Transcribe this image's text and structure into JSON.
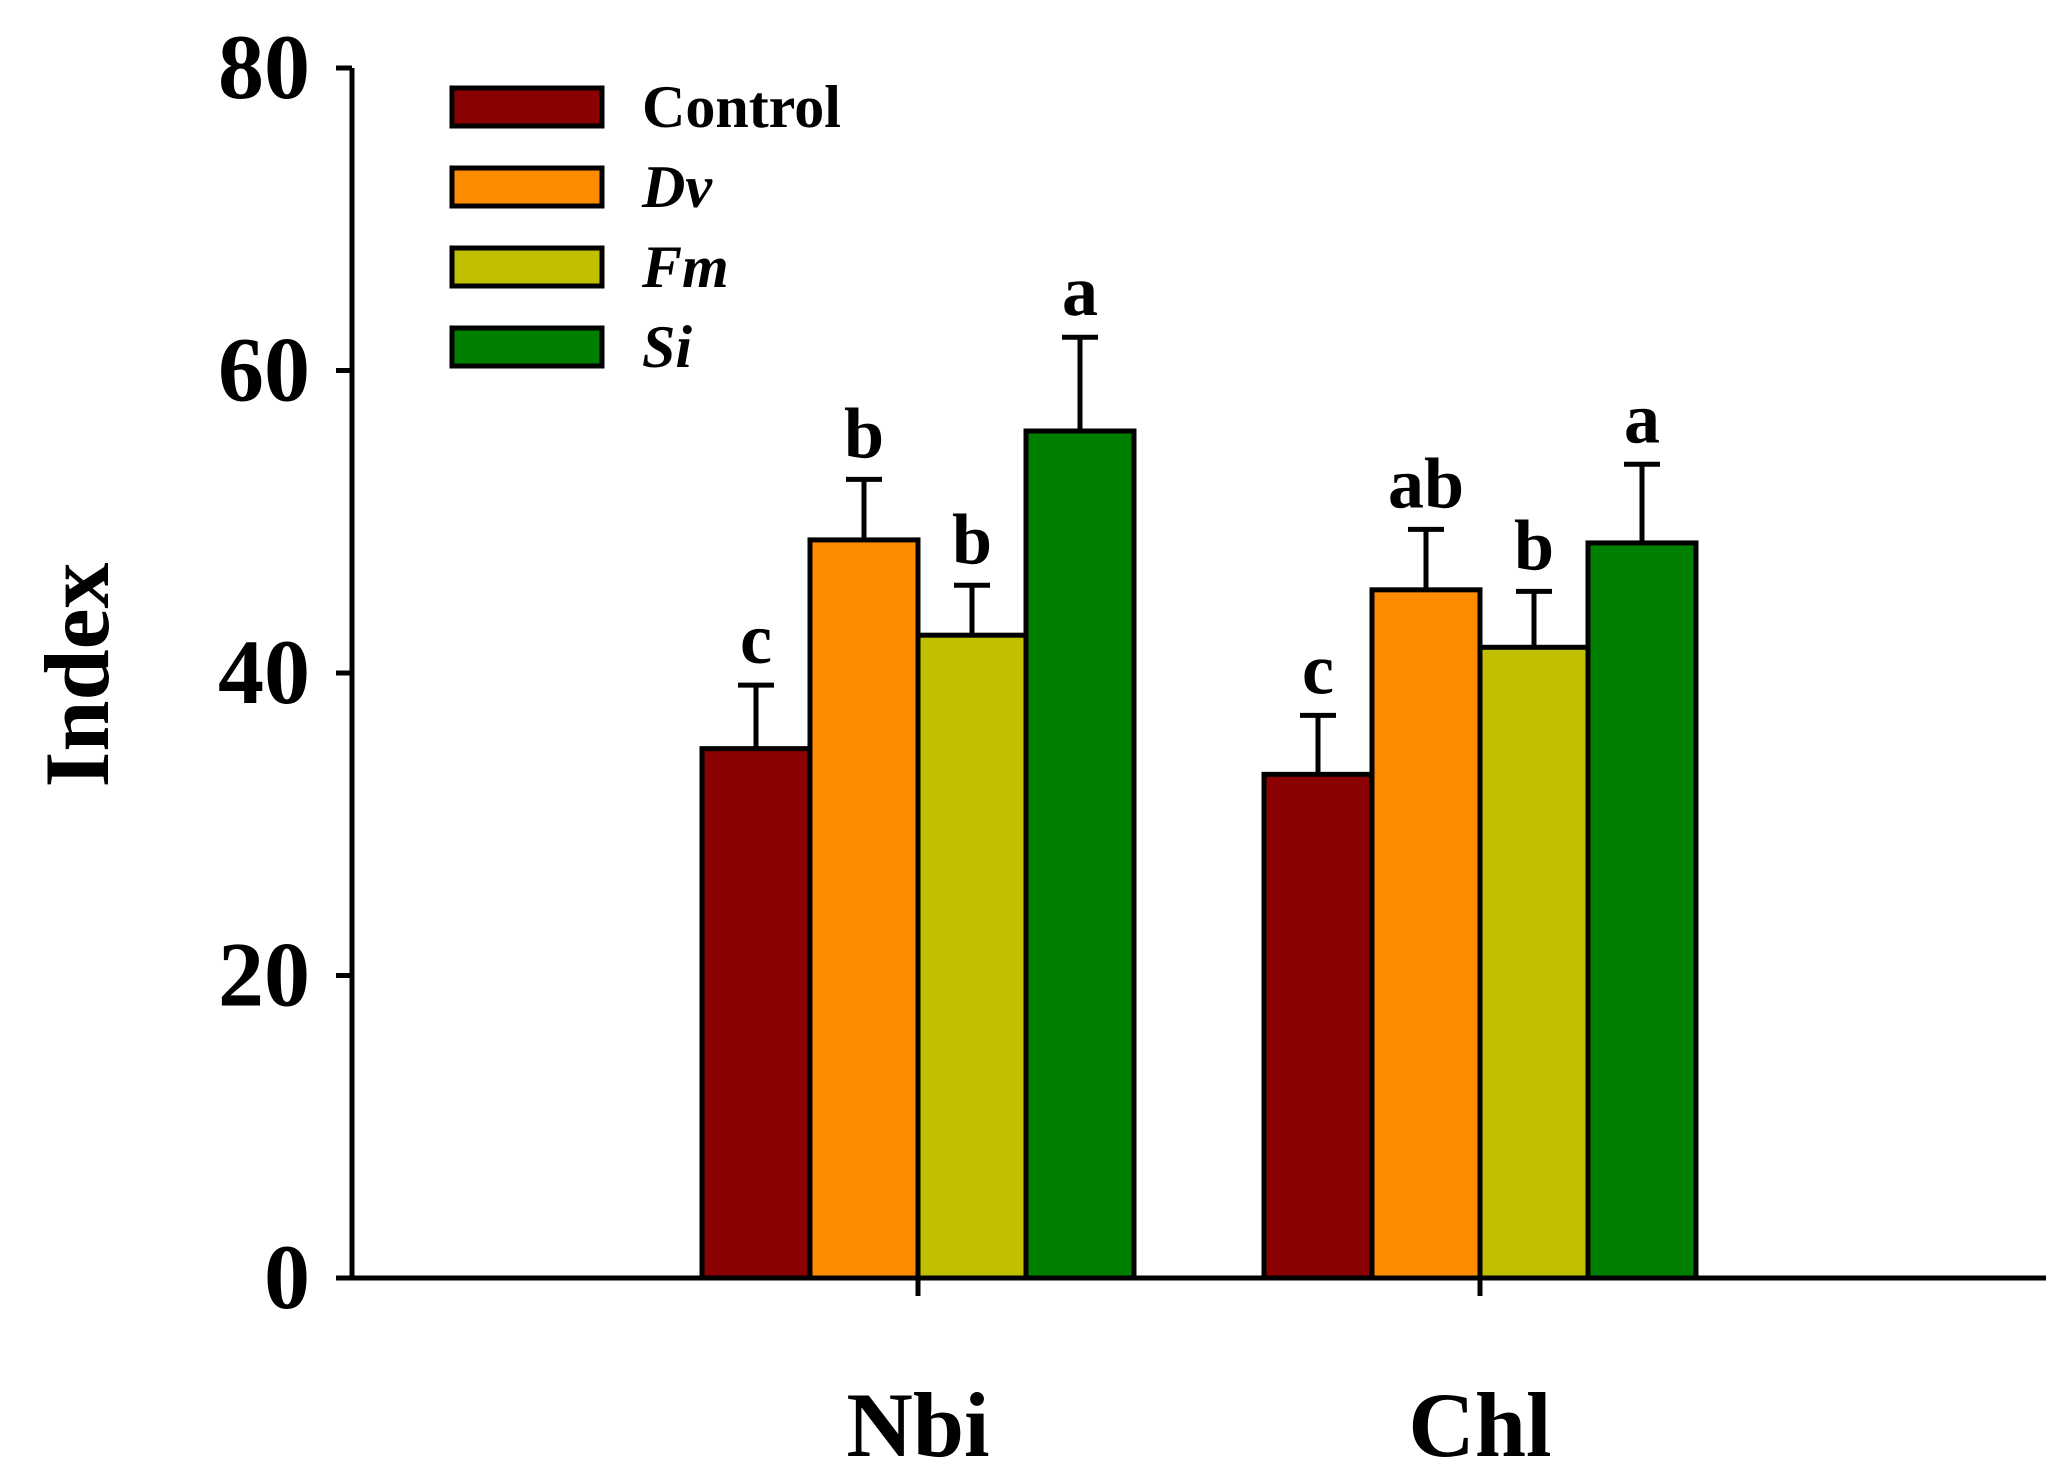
{
  "chart_data": {
    "type": "bar",
    "title": "",
    "xlabel": "",
    "ylabel": "Index",
    "ylim": [
      0,
      80
    ],
    "yticks": [
      0,
      20,
      40,
      60,
      80
    ],
    "categories": [
      "Nbi",
      "Chl"
    ],
    "legend_position": "top-left",
    "series": [
      {
        "name": "Control",
        "italic": false,
        "color": "#8b0000",
        "values": [
          35.0,
          33.3
        ],
        "errors": [
          4.2,
          3.9
        ],
        "letters": [
          "c",
          "c"
        ]
      },
      {
        "name": "Dv",
        "italic": true,
        "color": "#ff8c00",
        "values": [
          48.8,
          45.5
        ],
        "errors": [
          4.0,
          4.0
        ],
        "letters": [
          "b",
          "ab"
        ]
      },
      {
        "name": "Fm",
        "italic": true,
        "color": "#c0c000",
        "values": [
          42.5,
          41.7
        ],
        "errors": [
          3.3,
          3.7
        ],
        "letters": [
          "b",
          "b"
        ]
      },
      {
        "name": "Si",
        "italic": true,
        "color": "#008000",
        "values": [
          56.0,
          48.6
        ],
        "errors": [
          6.2,
          5.2
        ],
        "letters": [
          "a",
          "a"
        ]
      }
    ]
  }
}
